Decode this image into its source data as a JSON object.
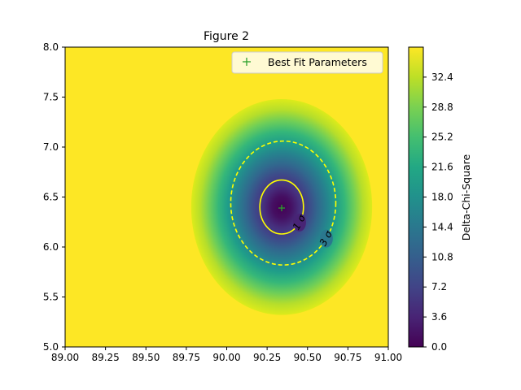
{
  "chart_data": {
    "type": "heatmap",
    "title": "Figure 2",
    "xlabel": "",
    "ylabel": "",
    "xlim": [
      89.0,
      91.0
    ],
    "ylim": [
      5.0,
      8.0
    ],
    "xticks": [
      "89.00",
      "89.25",
      "89.50",
      "89.75",
      "90.00",
      "90.25",
      "90.50",
      "90.75",
      "91.00"
    ],
    "yticks": [
      "5.0",
      "5.5",
      "6.0",
      "6.5",
      "7.0",
      "7.5",
      "8.0"
    ],
    "colorbar": {
      "label": "Delta-Chi-Square",
      "ticks": [
        "0.0",
        "3.6",
        "7.2",
        "10.8",
        "14.4",
        "18.0",
        "21.6",
        "25.2",
        "28.8",
        "32.4"
      ],
      "range": [
        0,
        36
      ],
      "colormap": "viridis"
    },
    "best_fit": {
      "x": 90.34,
      "y": 6.39,
      "marker": "+",
      "color": "#2ca02c"
    },
    "contours": [
      {
        "label": "1 σ",
        "center": [
          90.34,
          6.4
        ],
        "rx": 0.135,
        "ry": 0.27,
        "color": "#ffff00",
        "style": "solid"
      },
      {
        "label": "3 σ",
        "center": [
          90.35,
          6.44
        ],
        "rx": 0.325,
        "ry": 0.62,
        "color": "#ffff00",
        "style": "dashed"
      }
    ],
    "surface": {
      "center": [
        90.34,
        6.4
      ],
      "rx": 0.56,
      "ry": 1.08,
      "max_value": 36
    },
    "legend": {
      "entries": [
        "Best Fit Parameters"
      ],
      "placement": "top-right"
    }
  }
}
